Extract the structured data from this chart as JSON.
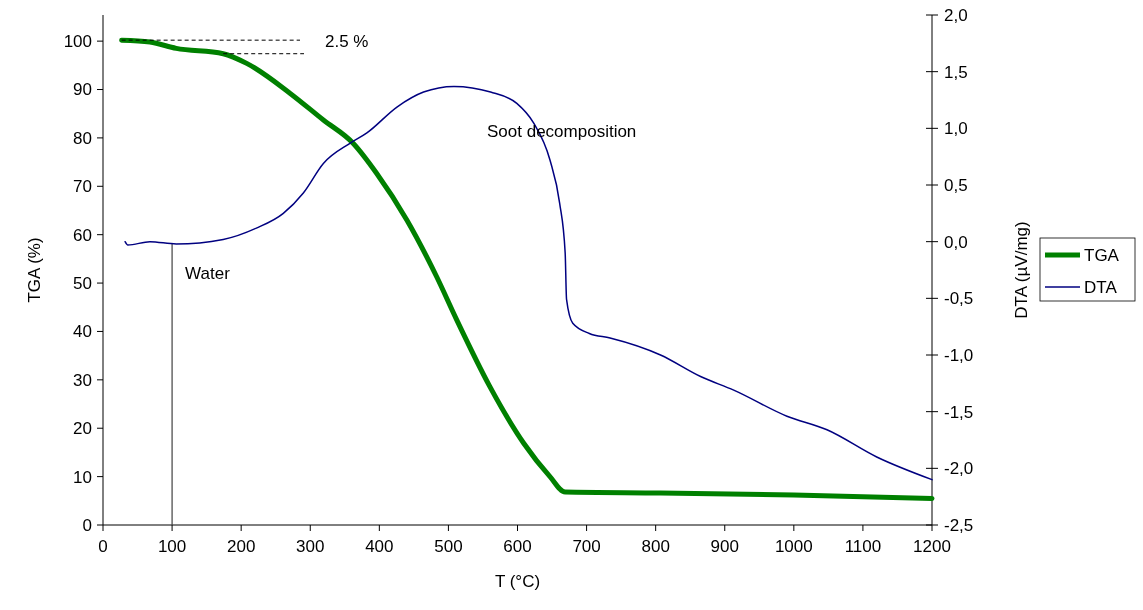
{
  "chart_data": {
    "type": "line",
    "xlabel": "T (°C)",
    "ylabel": "TGA (%)",
    "y2label": "DTA (µV/mg)",
    "xlim": [
      0,
      1200
    ],
    "xticks": [
      0,
      100,
      200,
      300,
      400,
      500,
      600,
      700,
      800,
      900,
      1000,
      1100,
      1200
    ],
    "ylim": [
      0,
      105.4
    ],
    "yticks": [
      0,
      10,
      20,
      30,
      40,
      50,
      60,
      70,
      80,
      90,
      100
    ],
    "y2lim": [
      -2.5,
      2.0
    ],
    "y2ticks": [
      {
        "value": -2.5,
        "label": "-2,5"
      },
      {
        "value": -2,
        "label": "-2,0"
      },
      {
        "value": -1.5,
        "label": "-1,5"
      },
      {
        "value": -1,
        "label": "-1,0"
      },
      {
        "value": -0.5,
        "label": "-0,5"
      },
      {
        "value": 0,
        "label": "0,0"
      },
      {
        "value": 0.5,
        "label": "0,5"
      },
      {
        "value": 1,
        "label": "1,0"
      },
      {
        "value": 1.5,
        "label": "1,5"
      },
      {
        "value": 2,
        "label": "2,0"
      }
    ],
    "legend": "right",
    "grid": false,
    "series": [
      {
        "name": "TGA",
        "color": "#008000",
        "x": [
          27,
          68,
          106,
          174,
          208,
          271,
          319,
          362,
          396,
          440,
          483,
          512,
          560,
          609,
          647,
          669,
          807,
          1000,
          1200
        ],
        "values": [
          100.2,
          99.8,
          98.5,
          97.4,
          95.4,
          89.2,
          83.7,
          78.9,
          72.7,
          63.0,
          51.3,
          42.4,
          28.6,
          16.9,
          10.0,
          6.8,
          6.6,
          6.2,
          5.5
        ]
      },
      {
        "name": "DTA",
        "color": "#000080",
        "axis": "y2",
        "x": [
          32,
          36,
          68,
          106,
          174,
          222,
          261,
          290,
          319,
          358,
          382,
          426,
          464,
          508,
          561,
          599,
          623,
          647,
          661,
          669,
          671,
          680,
          704,
          734,
          807,
          865,
          913,
          990,
          1048,
          1120,
          1200
        ],
        "values": [
          0.0,
          -0.03,
          0.0,
          -0.02,
          0.02,
          0.12,
          0.25,
          0.43,
          0.69,
          0.87,
          0.96,
          1.19,
          1.32,
          1.37,
          1.32,
          1.22,
          1.05,
          0.72,
          0.34,
          -0.1,
          -0.51,
          -0.72,
          -0.81,
          -0.85,
          -1.0,
          -1.19,
          -1.31,
          -1.54,
          -1.66,
          -1.9,
          -2.1
        ]
      }
    ],
    "ref_lines": [
      {
        "axis": "x",
        "value": 100,
        "label": "Water",
        "color": "#404040"
      }
    ],
    "annotations": [
      {
        "text": "2.5 %",
        "x": 174,
        "y": 97.4
      },
      "Soot decomposition"
    ]
  }
}
